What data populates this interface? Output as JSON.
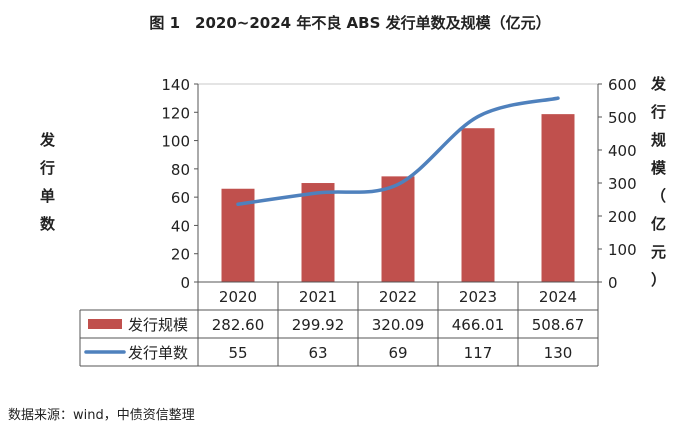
{
  "title": "图 1　2020~2024 年不良 ABS 发行单数及规模（亿元）",
  "y_left_label_chars": [
    "发",
    "行",
    "单",
    "数"
  ],
  "y_right_label_chars": [
    "发",
    "行",
    "规",
    "模",
    "（",
    "亿",
    "元",
    "）"
  ],
  "source": "数据来源：wind，中债资信整理",
  "colors": {
    "bar": "#c0504d",
    "line": "#4f81bd",
    "axis": "#555555",
    "grid": "#c8c8c8"
  },
  "chart_data": {
    "type": "bar",
    "categories": [
      "2020",
      "2021",
      "2022",
      "2023",
      "2024"
    ],
    "series": [
      {
        "name": "发行规模",
        "type": "bar",
        "axis": "right",
        "values": [
          282.6,
          299.92,
          320.09,
          466.01,
          508.67
        ],
        "display": [
          "282.60",
          "299.92",
          "320.09",
          "466.01",
          "508.67"
        ]
      },
      {
        "name": "发行单数",
        "type": "line",
        "axis": "left",
        "values": [
          55,
          63,
          69,
          117,
          130
        ],
        "display": [
          "55",
          "63",
          "69",
          "117",
          "130"
        ]
      }
    ],
    "y_left": {
      "ylim": [
        0,
        140
      ],
      "ticks": [
        0,
        20,
        40,
        60,
        80,
        100,
        120,
        140
      ]
    },
    "y_right": {
      "ylim": [
        0,
        600
      ],
      "ticks": [
        0,
        100,
        200,
        300,
        400,
        500,
        600
      ]
    },
    "data_table": true,
    "legend": "table-left"
  }
}
